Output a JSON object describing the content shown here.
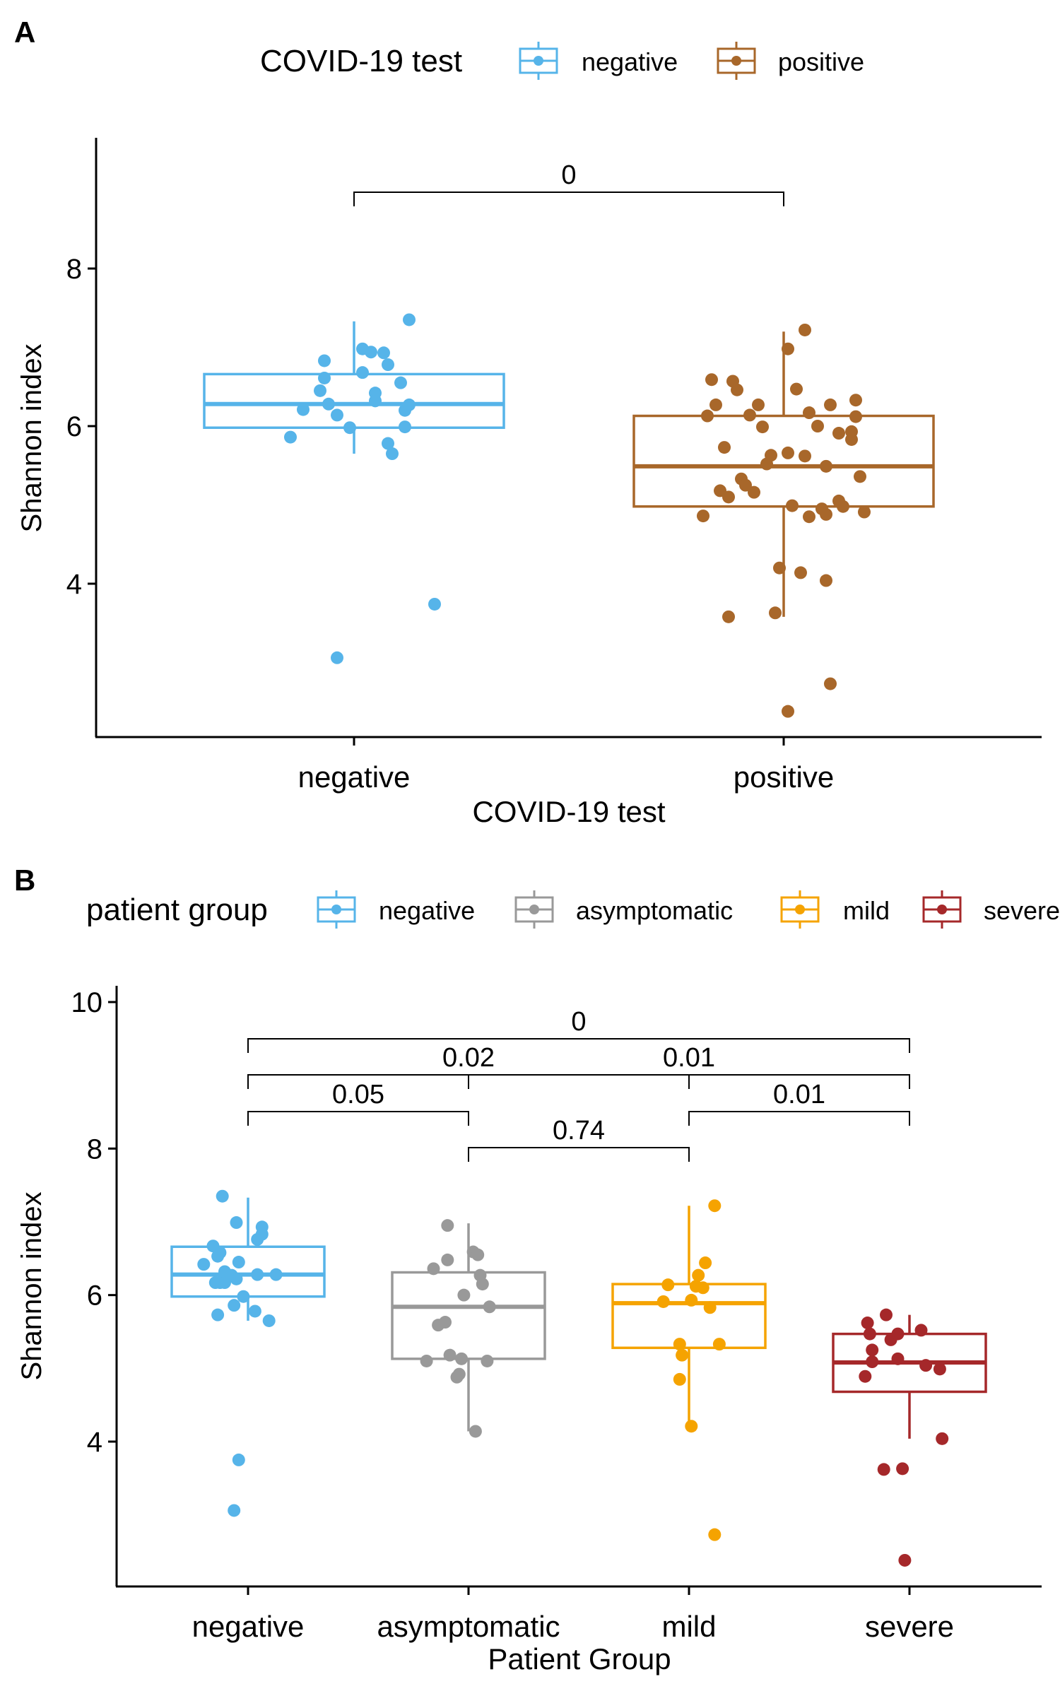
{
  "chart_data": [
    {
      "panel": "A",
      "type": "boxplot",
      "title": "",
      "xlabel": "COVID-19 test",
      "ylabel": "Shannon index",
      "ylim": [
        2.2,
        9.6
      ],
      "yticks": [
        4,
        6,
        8
      ],
      "grid": false,
      "legend": {
        "title": "COVID-19 test",
        "position": "top"
      },
      "categories": [
        "negative",
        "positive"
      ],
      "colors": [
        "#56B4E9",
        "#A8672A"
      ],
      "boxes": [
        {
          "q1": 5.98,
          "median": 6.28,
          "q3": 6.66,
          "whisker_low": 5.65,
          "whisker_high": 7.33
        },
        {
          "q1": 4.98,
          "median": 5.49,
          "q3": 6.13,
          "whisker_low": 3.58,
          "whisker_high": 7.2
        }
      ],
      "points": [
        [
          [
            -0.15,
            5.86
          ],
          [
            -0.12,
            6.21
          ],
          [
            -0.07,
            6.61
          ],
          [
            -0.08,
            6.45
          ],
          [
            -0.07,
            6.83
          ],
          [
            -0.06,
            6.28
          ],
          [
            -0.04,
            3.06
          ],
          [
            -0.04,
            6.14
          ],
          [
            -0.01,
            5.98
          ],
          [
            0.02,
            6.68
          ],
          [
            0.02,
            6.98
          ],
          [
            0.04,
            6.94
          ],
          [
            0.05,
            6.32
          ],
          [
            0.05,
            6.42
          ],
          [
            0.07,
            6.93
          ],
          [
            0.08,
            5.78
          ],
          [
            0.09,
            5.65
          ],
          [
            0.08,
            6.78
          ],
          [
            0.11,
            6.55
          ],
          [
            0.12,
            5.99
          ],
          [
            0.12,
            6.2
          ],
          [
            0.13,
            6.27
          ],
          [
            0.13,
            7.35
          ],
          [
            0.19,
            3.74
          ]
        ],
        [
          [
            -0.19,
            4.86
          ],
          [
            -0.18,
            6.13
          ],
          [
            -0.17,
            6.59
          ],
          [
            -0.16,
            6.27
          ],
          [
            -0.15,
            5.18
          ],
          [
            -0.13,
            3.58
          ],
          [
            -0.14,
            5.73
          ],
          [
            -0.13,
            5.1
          ],
          [
            -0.12,
            6.57
          ],
          [
            -0.11,
            6.46
          ],
          [
            -0.1,
            5.33
          ],
          [
            -0.09,
            5.25
          ],
          [
            -0.08,
            6.14
          ],
          [
            -0.07,
            5.16
          ],
          [
            -0.06,
            6.27
          ],
          [
            -0.05,
            5.99
          ],
          [
            -0.04,
            5.52
          ],
          [
            -0.03,
            5.63
          ],
          [
            -0.02,
            3.63
          ],
          [
            -0.01,
            4.2
          ],
          [
            0.01,
            6.98
          ],
          [
            0.01,
            5.66
          ],
          [
            0.02,
            4.99
          ],
          [
            0.03,
            6.47
          ],
          [
            0.04,
            4.14
          ],
          [
            0.05,
            5.62
          ],
          [
            0.05,
            7.22
          ],
          [
            0.06,
            6.17
          ],
          [
            0.06,
            4.85
          ],
          [
            0.08,
            6.0
          ],
          [
            0.09,
            4.95
          ],
          [
            0.1,
            4.04
          ],
          [
            0.1,
            4.88
          ],
          [
            0.1,
            5.49
          ],
          [
            0.11,
            6.27
          ],
          [
            0.11,
            2.73
          ],
          [
            0.13,
            5.91
          ],
          [
            0.13,
            5.05
          ],
          [
            0.14,
            4.98
          ],
          [
            0.16,
            5.83
          ],
          [
            0.16,
            5.93
          ],
          [
            0.17,
            6.33
          ],
          [
            0.17,
            6.12
          ],
          [
            0.18,
            5.36
          ],
          [
            0.19,
            4.91
          ],
          [
            0.01,
            2.38
          ]
        ]
      ],
      "comparisons": [
        {
          "from": "negative",
          "to": "positive",
          "label": "0"
        }
      ]
    },
    {
      "panel": "B",
      "type": "boxplot",
      "title": "",
      "xlabel": "Patient Group",
      "ylabel": "Shannon index",
      "ylim": [
        2.2,
        10.2
      ],
      "yticks": [
        4,
        6,
        8,
        10
      ],
      "grid": false,
      "legend": {
        "title": "patient group",
        "position": "top"
      },
      "categories": [
        "negative",
        "asymptomatic",
        "mild",
        "severe"
      ],
      "legend_labels": [
        "negative",
        "asymptomatic",
        "mild",
        "severe"
      ],
      "colors": [
        "#56B4E9",
        "#999999",
        "#F5A300",
        "#A5282A"
      ],
      "boxes": [
        {
          "q1": 5.98,
          "median": 6.28,
          "q3": 6.66,
          "whisker_low": 5.65,
          "whisker_high": 7.33
        },
        {
          "q1": 5.13,
          "median": 5.84,
          "q3": 6.31,
          "whisker_low": 4.14,
          "whisker_high": 6.98
        },
        {
          "q1": 5.28,
          "median": 5.89,
          "q3": 6.15,
          "whisker_low": 4.2,
          "whisker_high": 7.22
        },
        {
          "q1": 4.68,
          "median": 5.08,
          "q3": 5.47,
          "whisker_low": 4.04,
          "whisker_high": 5.73
        }
      ],
      "points": [
        [
          [
            -0.19,
            6.42
          ],
          [
            -0.15,
            6.67
          ],
          [
            -0.14,
            6.17
          ],
          [
            -0.13,
            6.53
          ],
          [
            -0.13,
            5.73
          ],
          [
            -0.12,
            6.58
          ],
          [
            -0.12,
            6.17
          ],
          [
            -0.1,
            6.17
          ],
          [
            -0.1,
            6.32
          ],
          [
            -0.07,
            6.27
          ],
          [
            -0.06,
            5.86
          ],
          [
            -0.05,
            6.99
          ],
          [
            -0.05,
            6.22
          ],
          [
            -0.04,
            6.45
          ],
          [
            -0.04,
            3.75
          ],
          [
            -0.02,
            5.98
          ],
          [
            -0.06,
            3.06
          ],
          [
            0.03,
            5.78
          ],
          [
            0.04,
            6.76
          ],
          [
            0.04,
            6.28
          ],
          [
            0.06,
            6.93
          ],
          [
            0.06,
            6.83
          ],
          [
            0.09,
            5.65
          ],
          [
            0.12,
            6.28
          ],
          [
            -0.11,
            7.35
          ]
        ],
        [
          [
            -0.18,
            5.1
          ],
          [
            -0.15,
            6.36
          ],
          [
            -0.13,
            5.59
          ],
          [
            -0.1,
            5.63
          ],
          [
            -0.09,
            6.95
          ],
          [
            -0.09,
            6.48
          ],
          [
            -0.08,
            5.18
          ],
          [
            -0.05,
            4.88
          ],
          [
            -0.04,
            4.92
          ],
          [
            -0.03,
            5.13
          ],
          [
            -0.02,
            6.0
          ],
          [
            0.02,
            6.59
          ],
          [
            0.04,
            6.55
          ],
          [
            0.05,
            6.27
          ],
          [
            0.06,
            6.15
          ],
          [
            0.08,
            5.1
          ],
          [
            0.09,
            5.84
          ],
          [
            0.03,
            4.14
          ]
        ],
        [
          [
            -0.11,
            5.91
          ],
          [
            -0.09,
            6.14
          ],
          [
            -0.04,
            4.85
          ],
          [
            -0.04,
            5.33
          ],
          [
            -0.03,
            5.18
          ],
          [
            0.01,
            5.93
          ],
          [
            0.03,
            6.12
          ],
          [
            0.04,
            6.27
          ],
          [
            0.06,
            6.1
          ],
          [
            0.07,
            6.44
          ],
          [
            0.09,
            5.83
          ],
          [
            0.11,
            7.22
          ],
          [
            0.13,
            5.33
          ],
          [
            0.01,
            4.21
          ],
          [
            0.11,
            2.73
          ]
        ],
        [
          [
            -0.18,
            5.62
          ],
          [
            -0.17,
            5.47
          ],
          [
            -0.16,
            5.25
          ],
          [
            -0.16,
            5.09
          ],
          [
            -0.1,
            5.73
          ],
          [
            -0.11,
            3.62
          ],
          [
            -0.08,
            5.39
          ],
          [
            -0.05,
            5.47
          ],
          [
            -0.05,
            5.13
          ],
          [
            -0.03,
            3.63
          ],
          [
            -0.02,
            2.38
          ],
          [
            0.05,
            5.52
          ],
          [
            0.07,
            5.04
          ],
          [
            0.13,
            4.99
          ],
          [
            0.14,
            4.04
          ],
          [
            -0.19,
            4.89
          ]
        ]
      ],
      "comparisons": [
        {
          "from": "asymptomatic",
          "to": "mild",
          "label": "0.74"
        },
        {
          "from": "negative",
          "to": "asymptomatic",
          "label": "0.05"
        },
        {
          "from": "mild",
          "to": "severe",
          "label": "0.01"
        },
        {
          "from": "negative",
          "to": "mild",
          "label": "0.02"
        },
        {
          "from": "asymptomatic",
          "to": "severe",
          "label": "0.01"
        },
        {
          "from": "negative",
          "to": "severe",
          "label": "0"
        }
      ]
    }
  ]
}
